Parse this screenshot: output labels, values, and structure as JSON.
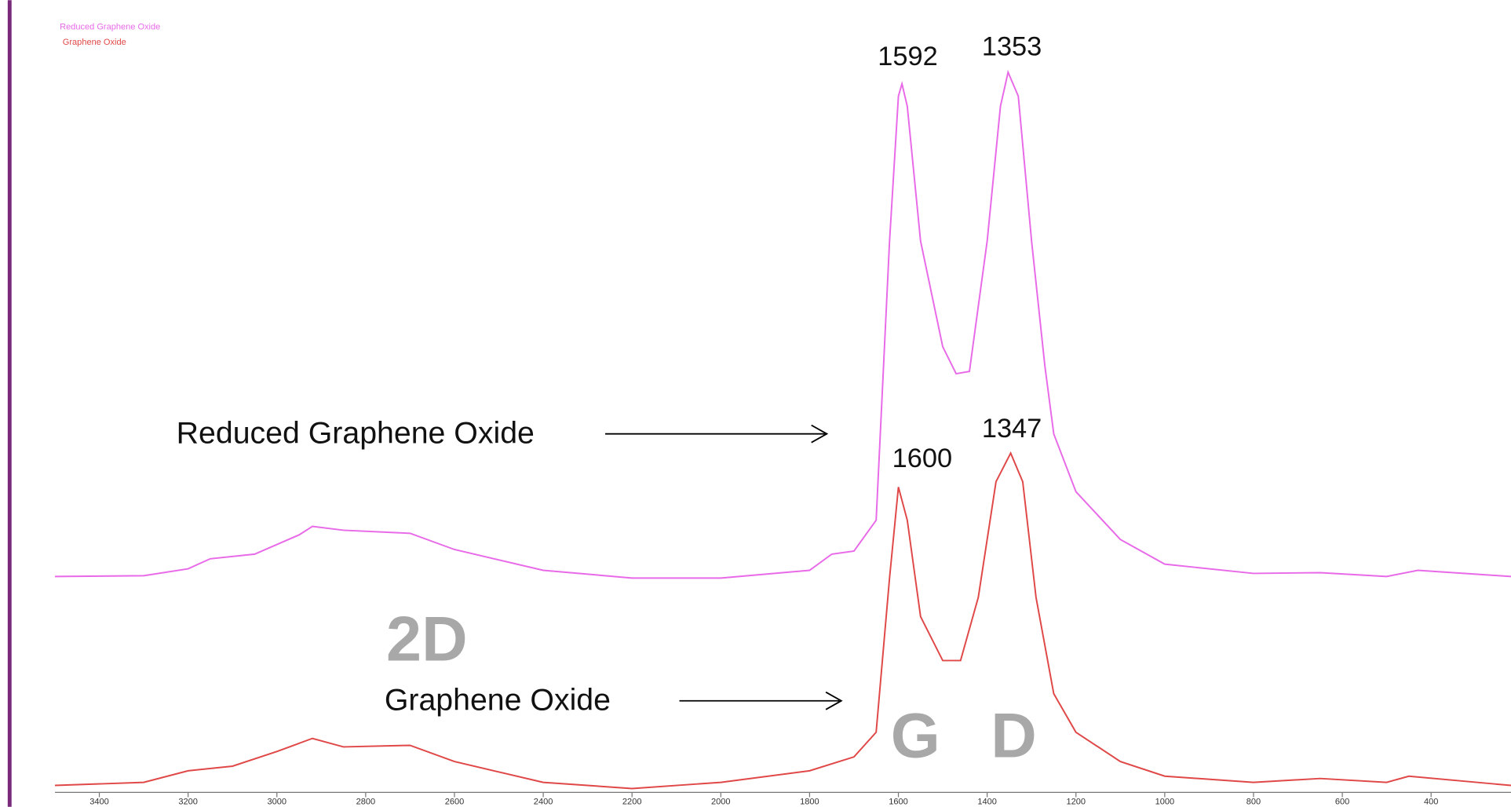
{
  "chart_data": {
    "type": "line",
    "series": [
      {
        "name": "Reduced Graphene Oxide",
        "color": "#e86ae8",
        "x": [
          3500,
          3300,
          3200,
          3150,
          3050,
          2950,
          2920,
          2850,
          2700,
          2600,
          2400,
          2200,
          2000,
          1800,
          1750,
          1700,
          1650,
          1620,
          1600,
          1592,
          1580,
          1550,
          1500,
          1470,
          1440,
          1400,
          1370,
          1353,
          1330,
          1300,
          1270,
          1250,
          1200,
          1100,
          1000,
          800,
          650,
          500,
          430,
          220
        ],
        "values": [
          28,
          28.1,
          29,
          30.3,
          30.9,
          33.4,
          34.5,
          34,
          33.6,
          31.5,
          28.8,
          27.8,
          27.8,
          28.8,
          30.9,
          31.3,
          35.3,
          71.5,
          90.3,
          91.9,
          89,
          71.5,
          57.8,
          54.3,
          54.6,
          71.5,
          89,
          93.4,
          90.3,
          71.5,
          55.3,
          46.5,
          39,
          32.8,
          29.6,
          28.4,
          28.5,
          28,
          28.8,
          28
        ]
      },
      {
        "name": "Graphene Oxide",
        "color": "#e04848",
        "x": [
          3500,
          3300,
          3200,
          3100,
          3000,
          2920,
          2850,
          2700,
          2600,
          2400,
          2200,
          2000,
          1800,
          1700,
          1650,
          1620,
          1600,
          1580,
          1550,
          1500,
          1460,
          1420,
          1380,
          1347,
          1320,
          1290,
          1250,
          1200,
          1100,
          1000,
          800,
          650,
          500,
          450,
          220
        ],
        "values": [
          0.9,
          1.3,
          2.8,
          3.4,
          5.3,
          7,
          5.9,
          6.1,
          4,
          1.3,
          0.5,
          1.3,
          2.8,
          4.6,
          7.8,
          27.8,
          39.6,
          35.3,
          22.8,
          17.1,
          17.1,
          25.3,
          40.3,
          44,
          40.3,
          25.3,
          12.8,
          7.8,
          4,
          2.1,
          1.3,
          1.8,
          1.3,
          2.1,
          0.9
        ]
      }
    ],
    "xlim": [
      3500,
      220
    ],
    "ylim": [
      0,
      100
    ],
    "xticks": [
      3400,
      3200,
      3000,
      2800,
      2600,
      2400,
      2200,
      2000,
      1800,
      1600,
      1400,
      1200,
      1000,
      800,
      600,
      400
    ],
    "annotations": [
      "1592",
      "1353",
      "1600",
      "1347"
    ],
    "band_labels": [
      "2D",
      "G",
      "D"
    ]
  }
}
